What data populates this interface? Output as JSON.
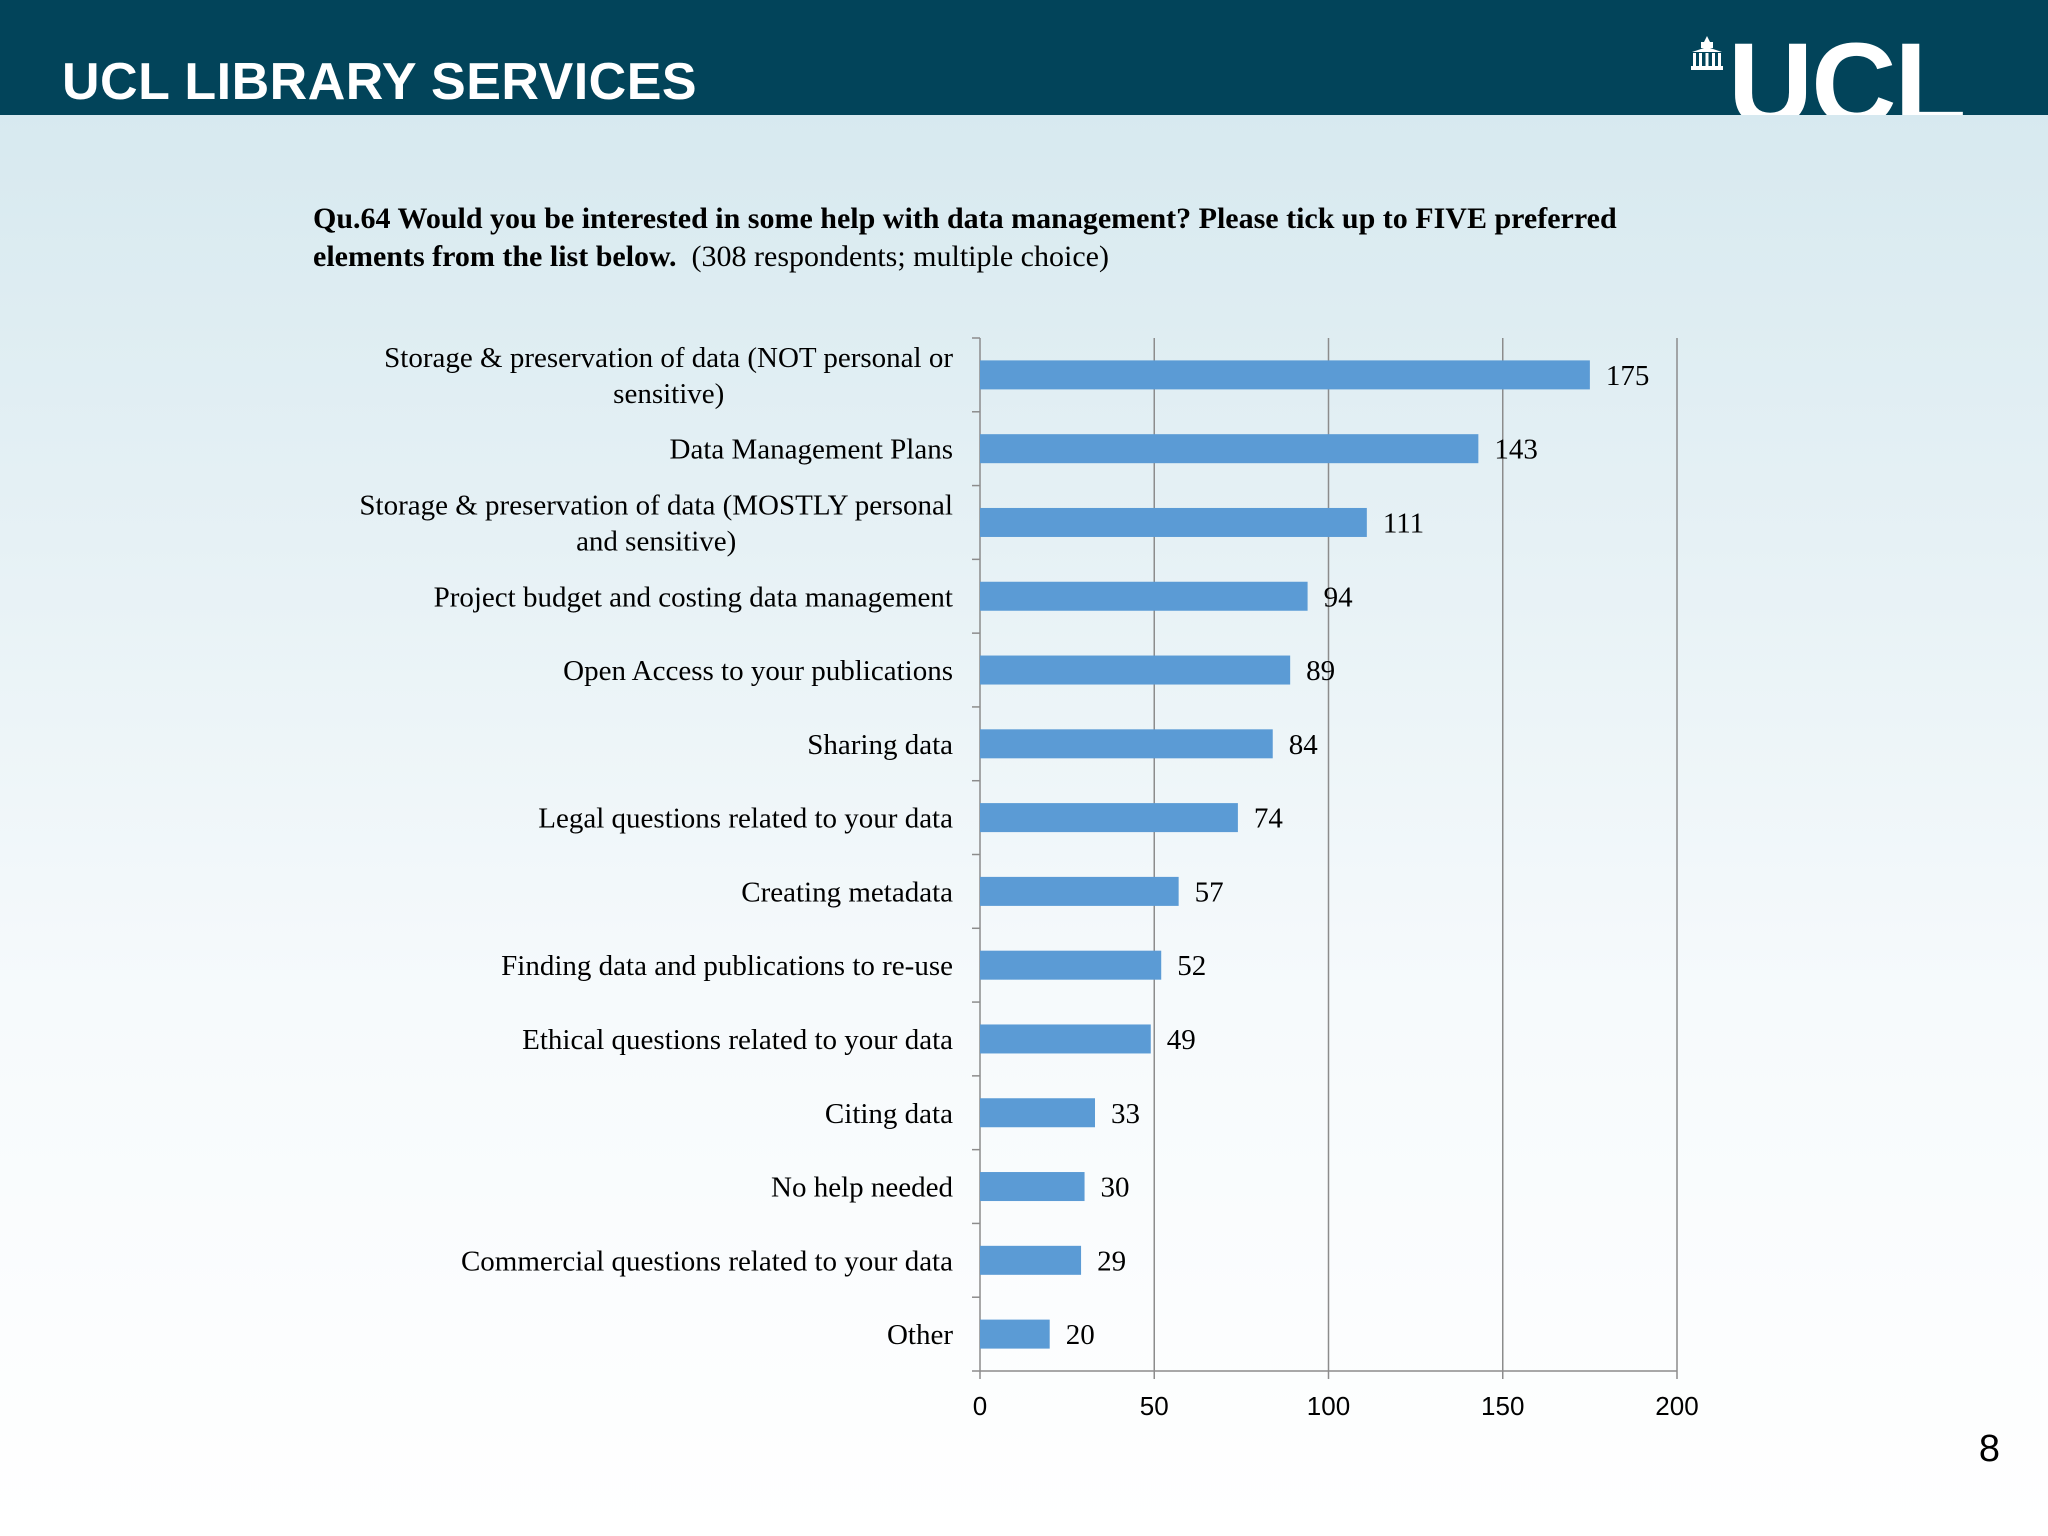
{
  "header": {
    "org_name": "UCL LIBRARY SERVICES",
    "logo_text": "UCL",
    "background_color": "#02445a"
  },
  "question": {
    "bold_text": "Qu.64 Would you be interested in some help with data management? Please tick up to FIVE preferred elements from the list below.",
    "note": "(308 respondents; multiple choice)"
  },
  "chart_data": {
    "type": "bar",
    "orientation": "horizontal",
    "categories": [
      "Storage & preservation of data (NOT personal or sensitive)",
      "Data Management Plans",
      "Storage & preservation of data (MOSTLY personal and sensitive)",
      "Project budget and costing data management",
      "Open Access to your publications",
      "Sharing data",
      "Legal questions related to your data",
      "Creating metadata",
      "Finding data and publications to re-use",
      "Ethical questions related to your data",
      "Citing data",
      "No help needed",
      "Commercial questions related to your data",
      "Other"
    ],
    "category_label_lines": [
      [
        "Storage & preservation of data (NOT personal or",
        "sensitive)"
      ],
      [
        "Data Management Plans"
      ],
      [
        "Storage & preservation of data (MOSTLY personal",
        "and sensitive)"
      ],
      [
        "Project budget and costing data management"
      ],
      [
        "Open Access to your publications"
      ],
      [
        "Sharing data"
      ],
      [
        "Legal questions related to your data"
      ],
      [
        "Creating metadata"
      ],
      [
        "Finding data and publications to re-use"
      ],
      [
        "Ethical questions related to your data"
      ],
      [
        "Citing data"
      ],
      [
        "No help needed"
      ],
      [
        "Commercial questions related to your data"
      ],
      [
        "Other"
      ]
    ],
    "values": [
      175,
      143,
      111,
      94,
      89,
      84,
      74,
      57,
      52,
      49,
      33,
      30,
      29,
      20
    ],
    "data_labels": true,
    "xlim": [
      0,
      200
    ],
    "xticks": [
      0,
      50,
      100,
      150,
      200
    ],
    "grid": true,
    "legend": "none",
    "bar_color": "#5b9bd5",
    "gridline_color": "#8c8c8c"
  },
  "page_number": "8"
}
